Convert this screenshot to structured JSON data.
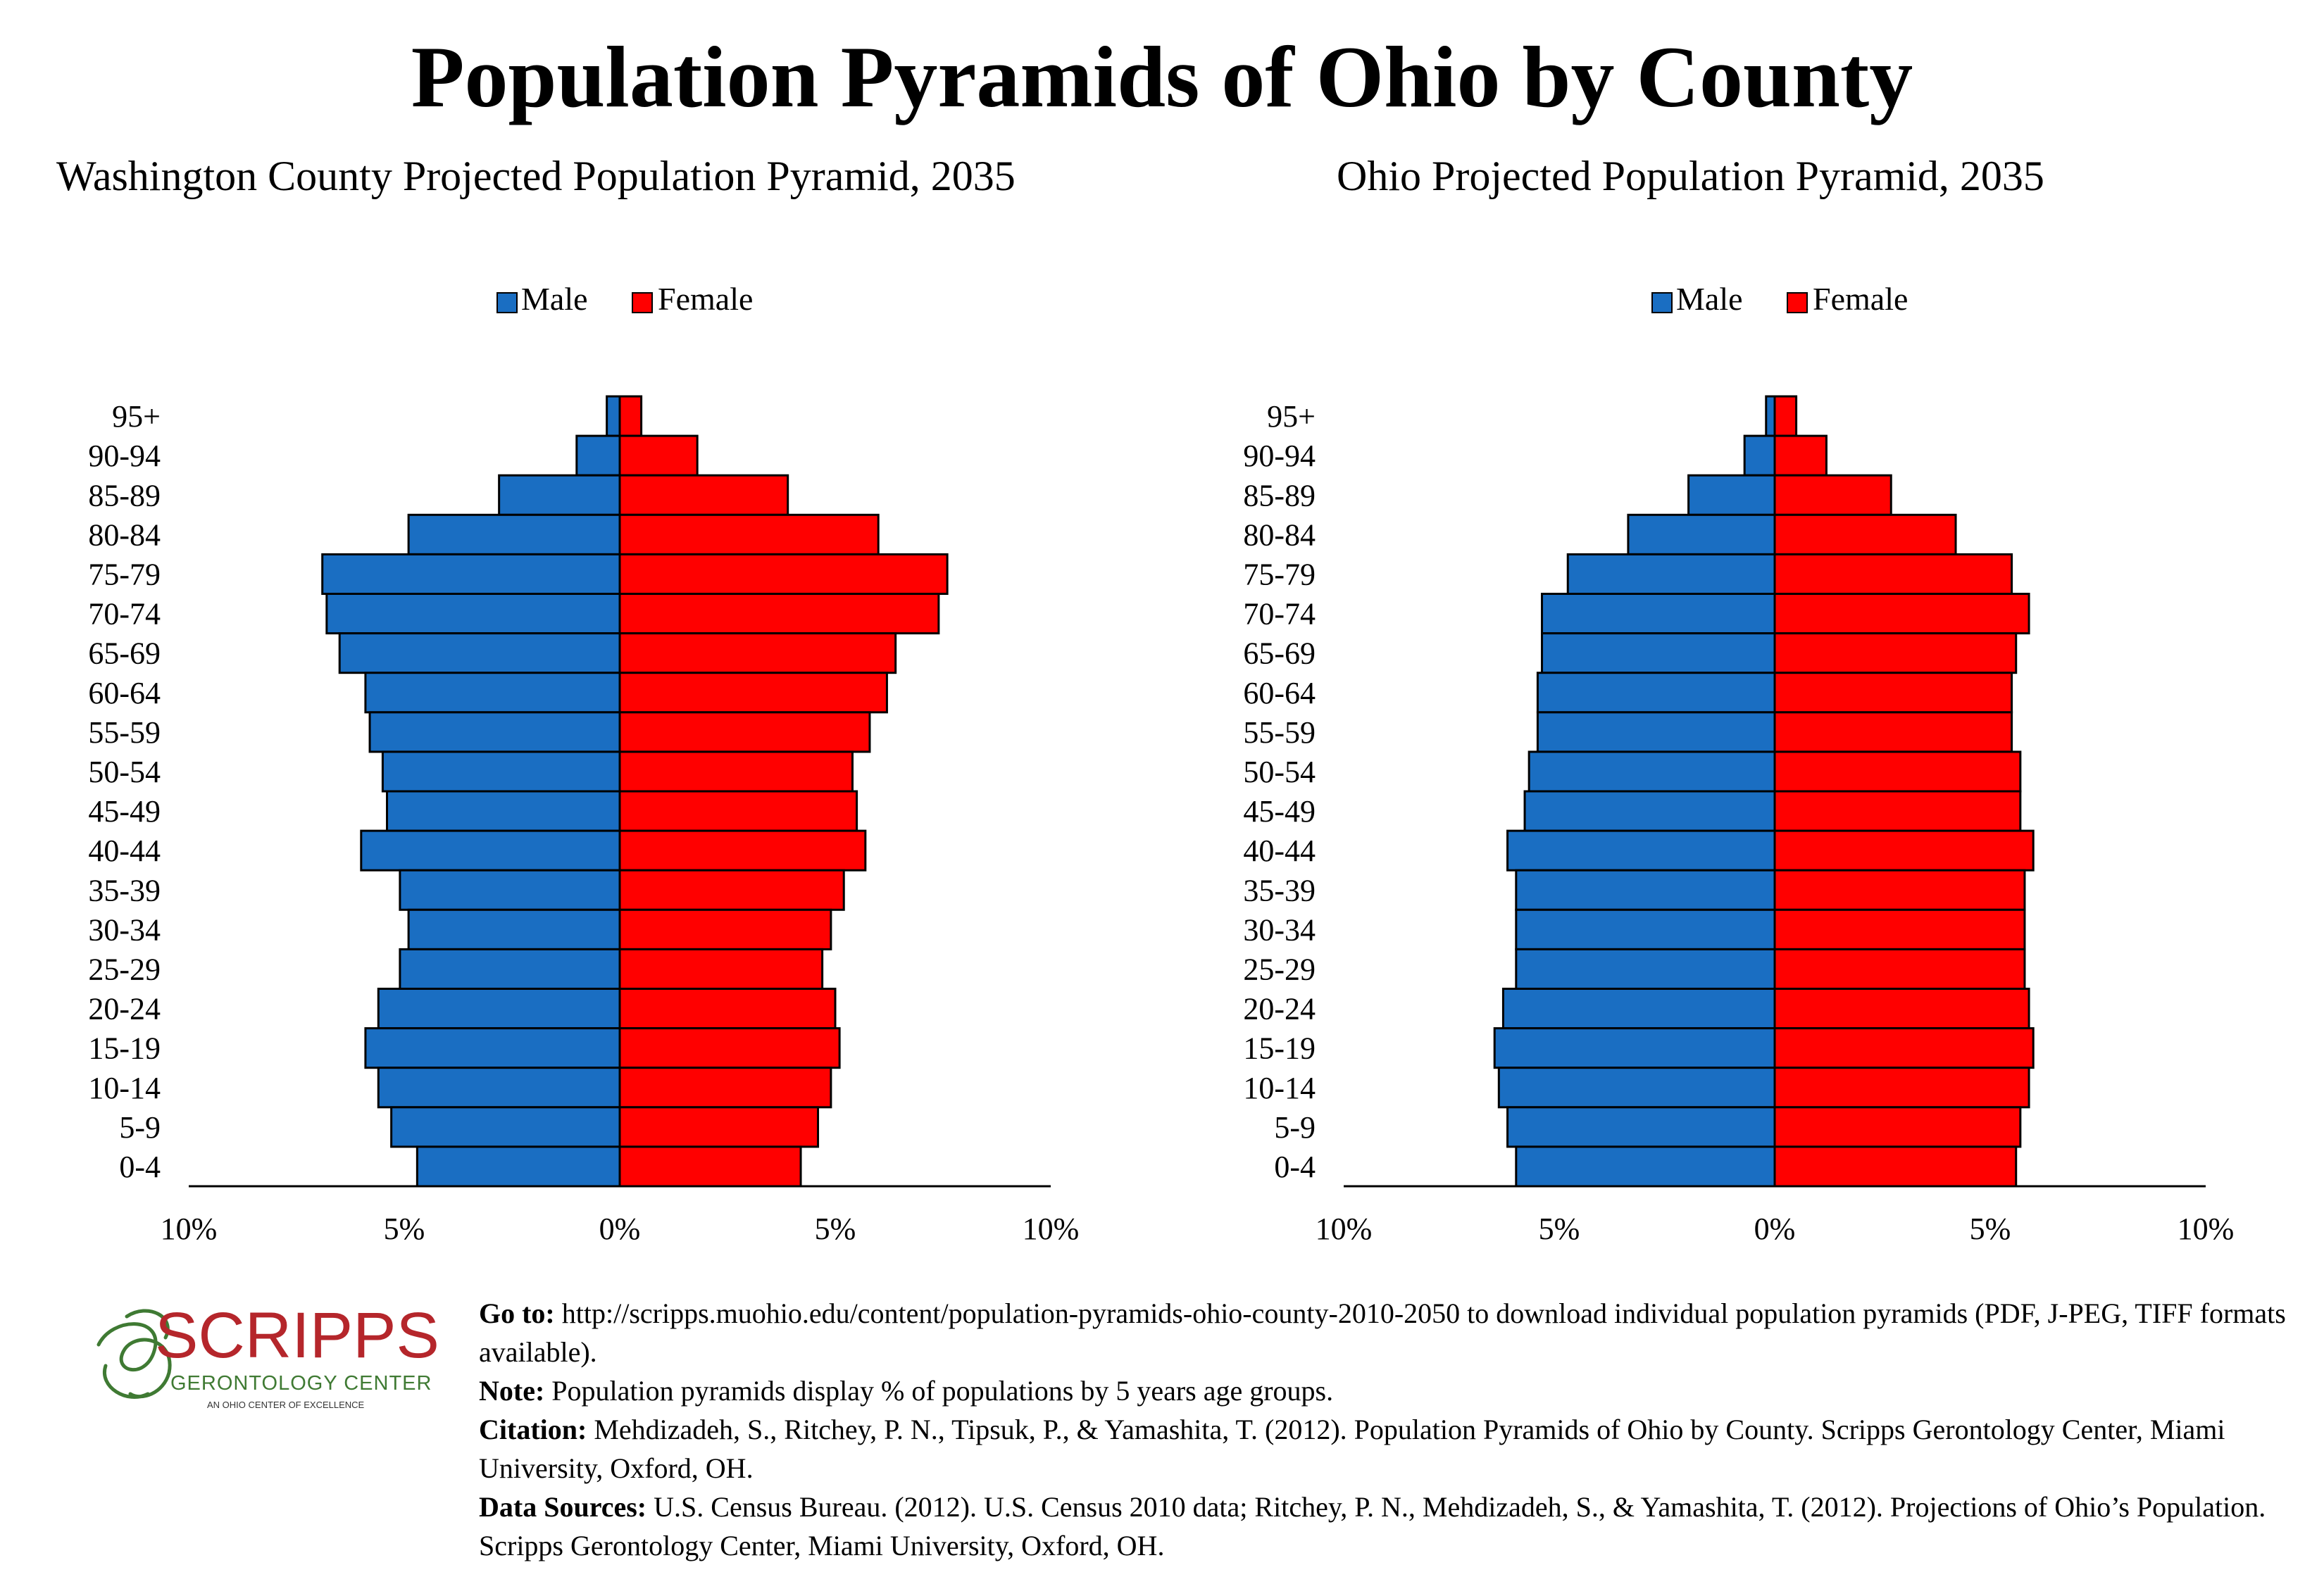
{
  "page": {
    "title": "Population Pyramids of Ohio by County"
  },
  "colors": {
    "male": "#1a6ec2",
    "female": "#ff0000",
    "logo_red": "#b5262b",
    "logo_green": "#3f7a33"
  },
  "chart_data": [
    {
      "type": "bar",
      "title": "Washington County Projected Population Pyramid, 2035",
      "legend": [
        "Male",
        "Female"
      ],
      "legend_position": "top",
      "categories": [
        "95+",
        "90-94",
        "85-89",
        "80-84",
        "75-79",
        "70-74",
        "65-69",
        "60-64",
        "55-59",
        "50-54",
        "45-49",
        "40-44",
        "35-39",
        "30-34",
        "25-29",
        "20-24",
        "15-19",
        "10-14",
        "5-9",
        "0-4"
      ],
      "series": [
        {
          "name": "Male",
          "values": [
            0.3,
            1.0,
            2.8,
            4.9,
            6.9,
            6.8,
            6.5,
            5.9,
            5.8,
            5.5,
            5.4,
            6.0,
            5.1,
            4.9,
            5.1,
            5.6,
            5.9,
            5.6,
            5.3,
            4.7
          ]
        },
        {
          "name": "Female",
          "values": [
            0.5,
            1.8,
            3.9,
            6.0,
            7.6,
            7.4,
            6.4,
            6.2,
            5.8,
            5.4,
            5.5,
            5.7,
            5.2,
            4.9,
            4.7,
            5.0,
            5.1,
            4.9,
            4.6,
            4.2
          ]
        }
      ],
      "x_tick_labels": [
        "10%",
        "5%",
        "0%",
        "5%",
        "10%"
      ],
      "xlim": [
        -10,
        10
      ],
      "grid": false
    },
    {
      "type": "bar",
      "title": "Ohio Projected Population Pyramid, 2035",
      "legend": [
        "Male",
        "Female"
      ],
      "legend_position": "top",
      "categories": [
        "95+",
        "90-94",
        "85-89",
        "80-84",
        "75-79",
        "70-74",
        "65-69",
        "60-64",
        "55-59",
        "50-54",
        "45-49",
        "40-44",
        "35-39",
        "30-34",
        "25-29",
        "20-24",
        "15-19",
        "10-14",
        "5-9",
        "0-4"
      ],
      "series": [
        {
          "name": "Male",
          "values": [
            0.2,
            0.7,
            2.0,
            3.4,
            4.8,
            5.4,
            5.4,
            5.5,
            5.5,
            5.7,
            5.8,
            6.2,
            6.0,
            6.0,
            6.0,
            6.3,
            6.5,
            6.4,
            6.2,
            6.0
          ]
        },
        {
          "name": "Female",
          "values": [
            0.5,
            1.2,
            2.7,
            4.2,
            5.5,
            5.9,
            5.6,
            5.5,
            5.5,
            5.7,
            5.7,
            6.0,
            5.8,
            5.8,
            5.8,
            5.9,
            6.0,
            5.9,
            5.7,
            5.6
          ]
        }
      ],
      "x_tick_labels": [
        "10%",
        "5%",
        "0%",
        "5%",
        "10%"
      ],
      "xlim": [
        -10,
        10
      ],
      "grid": false
    }
  ],
  "logo": {
    "name": "SCRIPPS",
    "sub": "GERONTOLOGY CENTER",
    "tag": "AN OHIO CENTER OF EXCELLENCE"
  },
  "footer": {
    "goto_label": "Go to:",
    "goto_text": " http://scripps.muohio.edu/content/population-pyramids-ohio-county-2010-2050 to download individual population pyramids (PDF, J-PEG, TIFF formats available).",
    "note_label": "Note:",
    "note_text": " Population pyramids display % of populations by 5 years age groups.",
    "citation_label": "Citation:",
    "citation_text": " Mehdizadeh, S., Ritchey, P. N., Tipsuk, P., & Yamashita, T. (2012). Population Pyramids of Ohio by County. Scripps Gerontology Center, Miami University, Oxford, OH.",
    "sources_label": "Data Sources:",
    "sources_text": " U.S. Census Bureau. (2012). U.S. Census 2010 data; Ritchey, P. N., Mehdizadeh, S., & Yamashita, T. (2012). Projections of Ohio’s Population. Scripps Gerontology Center, Miami University, Oxford, OH."
  }
}
